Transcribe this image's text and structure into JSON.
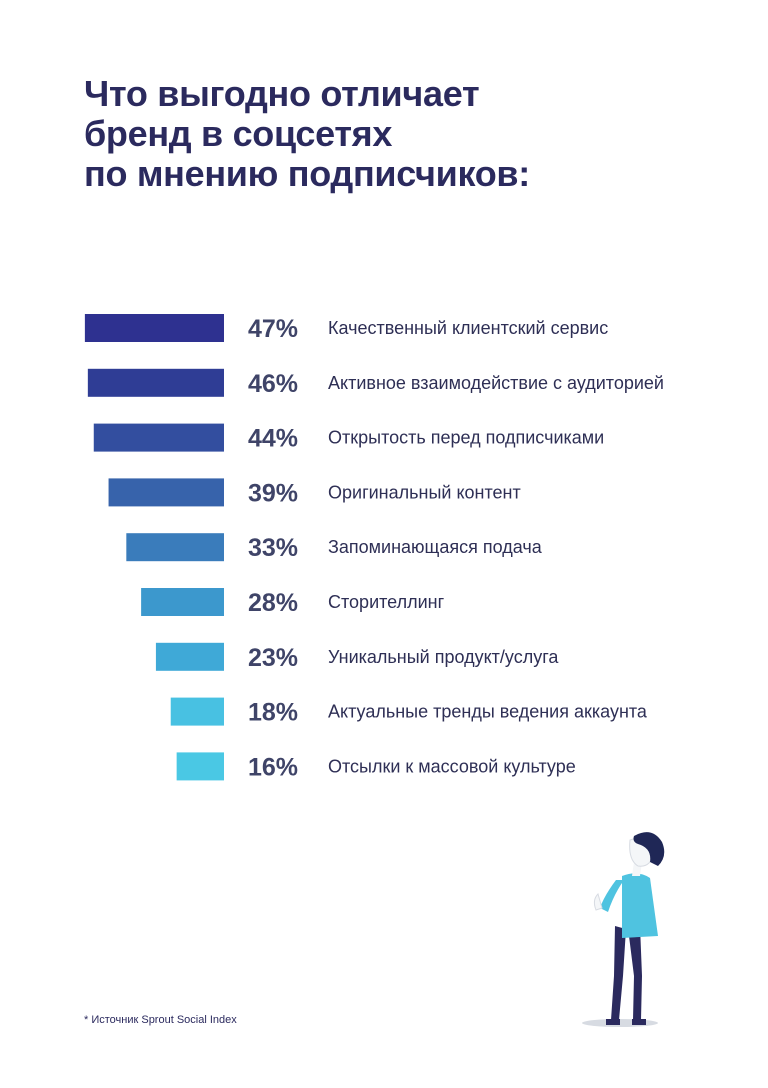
{
  "title_lines": [
    "Что выгодно отличает",
    "бренд в соцсетях",
    "по мнению подписчиков:"
  ],
  "source_note": "* Источник Sprout Social Index",
  "chart_data": {
    "type": "bar",
    "orientation": "horizontal",
    "categories": [
      "Качественный клиентский сервис",
      "Активное взаимодействие с аудиторией",
      "Открытость перед подписчиками",
      "Оригинальный контент",
      "Запоминающаяся подача",
      "Сторителлинг",
      "Уникальный продукт/услуга",
      "Актуальные тренды ведения аккаунта",
      "Отсылки к массовой культуре"
    ],
    "values": [
      47,
      46,
      44,
      39,
      33,
      28,
      23,
      18,
      16
    ],
    "value_labels": [
      "47%",
      "46%",
      "44%",
      "39%",
      "33%",
      "28%",
      "23%",
      "18%",
      "16%"
    ],
    "colors": [
      "#2e3190",
      "#2f3d95",
      "#334e9f",
      "#3763ab",
      "#3a7cbb",
      "#3c98cd",
      "#3fa9d7",
      "#48c1e2",
      "#4ac8e4"
    ],
    "bar_direction": "right-aligned"
  },
  "illustration": {
    "name": "person-looking-up",
    "colors": {
      "shirt": "#4fc3e0",
      "pants": "#2b2a5e",
      "hair": "#1f2756",
      "skin": "#f4f6f8",
      "shadow": "#d7dbe2"
    }
  }
}
